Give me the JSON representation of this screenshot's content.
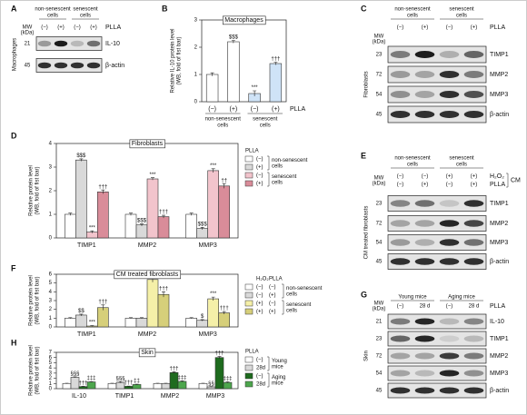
{
  "chart_data": [
    {
      "type": "bar",
      "panel": "B",
      "title": "Macrophages",
      "y_label": [
        "Relative IL-10 protein level",
        "(WB, fold of fist bar)"
      ],
      "categories": [
        "(−)",
        "(+)",
        "(−)",
        "(+)"
      ],
      "group_labels": [
        [
          "non-senescent",
          "cells"
        ],
        [
          "senescent",
          "cells"
        ]
      ],
      "row_label": "PLLA",
      "values": [
        1,
        2.2,
        0.3,
        1.4
      ],
      "errors": [
        0.06,
        0.05,
        0.1,
        0.05
      ],
      "annotations": [
        null,
        "$$$",
        "***",
        "†††"
      ],
      "colors": [
        "#ffffff",
        "#ffffff",
        "#cfe3f7",
        "#cfe3f7"
      ],
      "ylim": [
        0,
        3
      ],
      "yticks": [
        0,
        1,
        2,
        3
      ]
    },
    {
      "type": "bar",
      "panel": "D",
      "title": "Fibroblasts",
      "y_label": [
        "Relative protein level",
        "(WB, fold of fist bar)"
      ],
      "categories": [
        "TIMP1",
        "MMP2",
        "MMP3"
      ],
      "legend_title": [
        "PLLA"
      ],
      "legend_groups": [
        [
          "non-senescent",
          "cells"
        ],
        [
          "senescent",
          "cells"
        ]
      ],
      "series": [
        {
          "name": "(−)",
          "color": "#ffffff",
          "values": [
            1,
            1,
            1
          ],
          "errors": [
            0.05,
            0.05,
            0.05
          ],
          "annotations": [
            null,
            null,
            null
          ]
        },
        {
          "name": "(+)",
          "color": "#d9d9d9",
          "values": [
            3.3,
            0.55,
            0.4
          ],
          "errors": [
            0.05,
            0.05,
            0.05
          ],
          "annotations": [
            "$$$",
            "$$$",
            "$$$"
          ]
        },
        {
          "name": "(−)",
          "color": "#f2c4cc",
          "values": [
            0.25,
            2.5,
            2.85
          ],
          "errors": [
            0.05,
            0.05,
            0.08
          ],
          "annotations": [
            "***",
            "***",
            "***"
          ]
        },
        {
          "name": "(+)",
          "color": "#d98c99",
          "values": [
            1.95,
            0.9,
            2.2
          ],
          "errors": [
            0.08,
            0.06,
            0.1
          ],
          "annotations": [
            "†††",
            "†††",
            "††"
          ]
        }
      ],
      "ylim": [
        0,
        4
      ],
      "yticks": [
        0,
        1,
        2,
        3,
        4
      ]
    },
    {
      "type": "bar",
      "panel": "F",
      "title": "CM treated fibroblasts",
      "y_label": [
        "Relative protein level",
        "(WB, fold of fist bar)"
      ],
      "categories": [
        "TIMP1",
        "MMP2",
        "MMP3"
      ],
      "legend_title": [
        "H₂O₂",
        "PLLA"
      ],
      "legend_groups": [
        [
          "non-senescent",
          "cells"
        ],
        [
          "senescent",
          "cells"
        ]
      ],
      "series": [
        {
          "name": [
            "(−)",
            "(−)"
          ],
          "color": "#ffffff",
          "values": [
            1,
            1,
            1
          ],
          "errors": [
            0.05,
            0.05,
            0.05
          ],
          "annotations": [
            null,
            null,
            null
          ]
        },
        {
          "name": [
            "(−)",
            "(+)"
          ],
          "color": "#d9d9d9",
          "values": [
            1.35,
            1,
            0.75
          ],
          "errors": [
            0.1,
            0.05,
            0.08
          ],
          "annotations": [
            "$$",
            null,
            "$"
          ]
        },
        {
          "name": [
            "(+)",
            "(−)"
          ],
          "color": "#f5f0a8",
          "values": [
            0.1,
            5.4,
            3.2
          ],
          "errors": [
            0.05,
            0.3,
            0.2
          ],
          "annotations": [
            "***",
            "***",
            "***"
          ]
        },
        {
          "name": [
            "(+)",
            "(+)"
          ],
          "color": "#d6cf7a",
          "values": [
            2.2,
            3.7,
            1.6
          ],
          "errors": [
            0.3,
            0.3,
            0.15
          ],
          "annotations": [
            "†††",
            "†††",
            "†††"
          ]
        }
      ],
      "ylim": [
        0,
        6
      ],
      "yticks": [
        0,
        1,
        2,
        3,
        4,
        5,
        6
      ]
    },
    {
      "type": "bar",
      "panel": "H",
      "title": "Skin",
      "y_label": [
        "Relative protein level",
        "(WB, fold of fist bar)"
      ],
      "categories": [
        "IL-10",
        "TIMP1",
        "MMP2",
        "MMP3"
      ],
      "legend_title": [
        "PLLA"
      ],
      "legend_groups": [
        [
          "Young",
          "mice"
        ],
        [
          "Aging",
          "mice"
        ]
      ],
      "series": [
        {
          "name": "(−)",
          "color": "#ffffff",
          "values": [
            1,
            1,
            1,
            1
          ],
          "errors": [
            0.05,
            0.05,
            0.05,
            0.05
          ],
          "annotations": [
            null,
            null,
            null,
            null
          ]
        },
        {
          "name": "28d",
          "color": "#d9d9d9",
          "values": [
            2.2,
            1.2,
            1,
            0.35
          ],
          "errors": [
            0.08,
            0.1,
            0.05,
            0.05
          ],
          "annotations": [
            "§§§",
            "§§§",
            null,
            "§§"
          ]
        },
        {
          "name": "(−)",
          "color": "#1e6b1e",
          "values": [
            0.4,
            0.45,
            3.1,
            6
          ],
          "errors": [
            0.05,
            0.05,
            0.15,
            0.2
          ],
          "annotations": [
            "†††",
            "†††",
            "†††",
            "†††"
          ]
        },
        {
          "name": "28d",
          "color": "#4da64d",
          "values": [
            1.3,
            0.8,
            1.4,
            1.2
          ],
          "errors": [
            0.08,
            0.06,
            0.1,
            0.1
          ],
          "annotations": [
            "‡‡‡",
            "‡‡",
            "‡‡‡",
            "‡‡‡"
          ]
        }
      ],
      "ylim": [
        0,
        7
      ],
      "yticks": [
        0,
        1,
        2,
        3,
        4,
        5,
        6,
        7
      ]
    }
  ],
  "blots": [
    {
      "panel": "A",
      "side_label": "Macrophages",
      "mw_header": [
        "MW",
        "(kDa)"
      ],
      "groups": [
        [
          "non-senescent",
          "cells"
        ],
        [
          "senescent",
          "cells"
        ]
      ],
      "lanes": [
        {
          "label": "PLLA",
          "values": [
            "(−)",
            "(+)",
            "(−)",
            "(+)"
          ]
        }
      ],
      "rows": [
        {
          "mw": "21",
          "protein": "IL-10"
        },
        {
          "mw": "45",
          "protein": "β-actin"
        }
      ]
    },
    {
      "panel": "C",
      "side_label": "Fibroblasts",
      "mw_header": [
        "MW",
        "(kDa)"
      ],
      "groups": [
        [
          "non-senescent",
          "cells"
        ],
        [
          "senescent",
          "cells"
        ]
      ],
      "lanes": [
        {
          "label": "PLLA",
          "values": [
            "(−)",
            "(+)",
            "(−)",
            "(+)"
          ]
        }
      ],
      "rows": [
        {
          "mw": "23",
          "protein": "TIMP1"
        },
        {
          "mw": "72",
          "protein": "MMP2"
        },
        {
          "mw": "54",
          "protein": "MMP3"
        },
        {
          "mw": "45",
          "protein": "β-actin"
        }
      ]
    },
    {
      "panel": "E",
      "side_label": "CM treated fibroblasts",
      "mw_header": [
        "MW",
        "(kDa)"
      ],
      "groups": [
        [
          "non-senescent",
          "cells"
        ],
        [
          "senescent",
          "cells"
        ]
      ],
      "lanes": [
        {
          "label": "H₂O₂",
          "values": [
            "(−)",
            "(−)",
            "(+)",
            "(+)"
          ]
        },
        {
          "label": "PLLA",
          "values": [
            "(−)",
            "(+)",
            "(−)",
            "(+)"
          ]
        }
      ],
      "bracket": "CM",
      "rows": [
        {
          "mw": "23",
          "protein": "TIMP1"
        },
        {
          "mw": "72",
          "protein": "MMP2"
        },
        {
          "mw": "54",
          "protein": "MMP3"
        },
        {
          "mw": "45",
          "protein": "β-actin"
        }
      ]
    },
    {
      "panel": "G",
      "side_label": "Skin",
      "mw_header": [
        "MW",
        "(kDa)"
      ],
      "groups": [
        [
          "Young mice"
        ],
        [
          "Aging mice"
        ]
      ],
      "lanes": [
        {
          "label": "PLLA",
          "values": [
            "(−)",
            "28 d",
            "(−)",
            "28 d"
          ]
        }
      ],
      "rows": [
        {
          "mw": "21",
          "protein": "IL-10"
        },
        {
          "mw": "23",
          "protein": "TIMP1"
        },
        {
          "mw": "72",
          "protein": "MMP2"
        },
        {
          "mw": "54",
          "protein": "MMP3"
        },
        {
          "mw": "45",
          "protein": "β-actin"
        }
      ]
    }
  ]
}
